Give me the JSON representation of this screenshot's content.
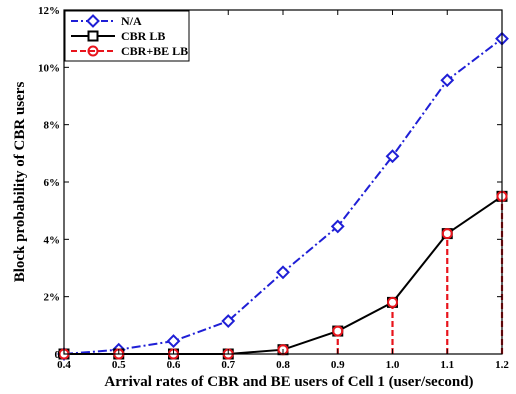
{
  "chart_data": {
    "type": "line",
    "title": "",
    "xlabel": "Arrival rates of CBR and BE users of Cell 1 (user/second)",
    "ylabel": "Block probability of CBR users",
    "x": [
      0.4,
      0.5,
      0.6,
      0.7,
      0.8,
      0.9,
      1.0,
      1.1,
      1.2
    ],
    "xlim": [
      0.4,
      1.2
    ],
    "ylim": [
      0,
      12
    ],
    "x_ticks": [
      "0.4",
      "0.5",
      "0.6",
      "0.7",
      "0.8",
      "0.9",
      "1.0",
      "1.1",
      "1.2"
    ],
    "y_ticks": [
      {
        "value": 0,
        "label": "0"
      },
      {
        "value": 2,
        "label": "2%"
      },
      {
        "value": 4,
        "label": "4%"
      },
      {
        "value": 6,
        "label": "6%"
      },
      {
        "value": 8,
        "label": "8%"
      },
      {
        "value": 10,
        "label": "10%"
      },
      {
        "value": 12,
        "label": "12%"
      }
    ],
    "grid": false,
    "legend_position": "top-left",
    "series": [
      {
        "name": "N/A",
        "values": [
          0.0,
          0.15,
          0.45,
          1.15,
          2.85,
          4.45,
          6.9,
          9.55,
          11.0
        ],
        "color": "#1f1fd6",
        "line_style": "dash-dot",
        "marker": "diamond"
      },
      {
        "name": "CBR LB",
        "values": [
          0.0,
          0.0,
          0.0,
          0.0,
          0.15,
          0.8,
          1.8,
          4.2,
          5.5
        ],
        "color": "#000000",
        "line_style": "solid",
        "marker": "square"
      },
      {
        "name": "CBR+BE LB",
        "values": [
          0.0,
          0.0,
          0.0,
          0.0,
          0.15,
          0.8,
          1.8,
          4.2,
          5.5
        ],
        "color": "#e8141c",
        "line_style": "dashed-stem",
        "marker": "circle"
      }
    ]
  }
}
